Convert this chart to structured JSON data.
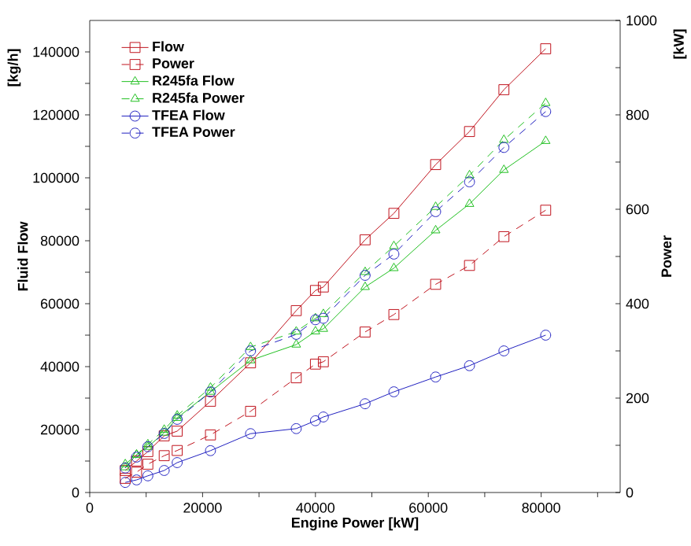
{
  "chart_data": {
    "type": "line",
    "xlabel": "Engine Power [kW]",
    "ylabel": "Fluid Flow",
    "y2label": "Power",
    "annotations": [
      "[kg/h]",
      "[kW]"
    ],
    "x": [
      6300,
      8300,
      10300,
      13200,
      15500,
      21400,
      28500,
      36600,
      40000,
      41400,
      48800,
      53900,
      61300,
      67300,
      73400,
      80800
    ],
    "series": [
      {
        "name": "Flow",
        "color": "#c0141e",
        "marker": "square",
        "line_style": "solid",
        "values": [
          7000,
          10000,
          13000,
          18000,
          19500,
          29000,
          41200,
          57800,
          64200,
          65300,
          80300,
          88700,
          104200,
          114700,
          128000,
          141000
        ]
      },
      {
        "name": "Power",
        "color": "#c0141e",
        "marker": "square",
        "line_style": "dashed",
        "axis": "y2",
        "values": [
          30,
          43,
          60,
          78,
          89,
          122,
          172,
          243,
          272,
          277,
          340,
          377,
          441,
          481,
          542,
          598
        ]
      },
      {
        "name": "R245fa Flow",
        "color": "#22c022",
        "marker": "triangle",
        "line_style": "solid",
        "values": [
          8000,
          12000,
          14500,
          19000,
          23700,
          32000,
          42000,
          47000,
          51200,
          52000,
          65300,
          71300,
          83300,
          91700,
          102500,
          111700
        ]
      },
      {
        "name": "R245fa Power",
        "color": "#22c022",
        "marker": "triangle",
        "line_style": "dashed",
        "axis": "y2",
        "values": [
          60,
          80,
          102,
          133,
          163,
          222,
          308,
          341,
          369,
          378,
          467,
          522,
          605,
          672,
          747,
          825
        ]
      },
      {
        "name": "TFEA Flow",
        "color": "#2020c0",
        "marker": "circle",
        "line_style": "solid",
        "values": [
          3200,
          4000,
          5300,
          7000,
          9500,
          13300,
          18700,
          20300,
          22800,
          24000,
          28200,
          32000,
          36700,
          40300,
          45000,
          50000
        ]
      },
      {
        "name": "TFEA Power",
        "color": "#2020c0",
        "marker": "circle",
        "line_style": "dashed",
        "axis": "y2",
        "values": [
          52,
          75,
          97,
          125,
          155,
          213,
          300,
          335,
          366,
          369,
          460,
          505,
          595,
          658,
          731,
          807
        ]
      }
    ],
    "xlim": [
      0,
      94000
    ],
    "xticks": [
      0,
      {
        "value": 10000,
        "label": null
      },
      20000,
      {
        "value": 30000,
        "label": null
      },
      40000,
      {
        "value": 50000,
        "label": null
      },
      60000,
      {
        "value": 70000,
        "label": null
      },
      80000,
      {
        "value": 90000,
        "label": null
      }
    ],
    "ylim": [
      0,
      150000
    ],
    "yticks": [
      0,
      {
        "value": 10000,
        "label": null
      },
      20000,
      {
        "value": 30000,
        "label": null
      },
      40000,
      {
        "value": 50000,
        "label": null
      },
      60000,
      {
        "value": 70000,
        "label": null
      },
      80000,
      {
        "value": 90000,
        "label": null
      },
      100000,
      {
        "value": 110000,
        "label": null
      },
      120000,
      {
        "value": 130000,
        "label": null
      },
      140000
    ],
    "y2lim": [
      0,
      1000
    ],
    "y2ticks": [
      0,
      {
        "value": 100,
        "label": null
      },
      200,
      {
        "value": 300,
        "label": null
      },
      400,
      {
        "value": 500,
        "label": null
      },
      600,
      {
        "value": 700,
        "label": null
      },
      800,
      {
        "value": 900,
        "label": null
      },
      1000
    ],
    "legend": "top left",
    "grid": false
  }
}
